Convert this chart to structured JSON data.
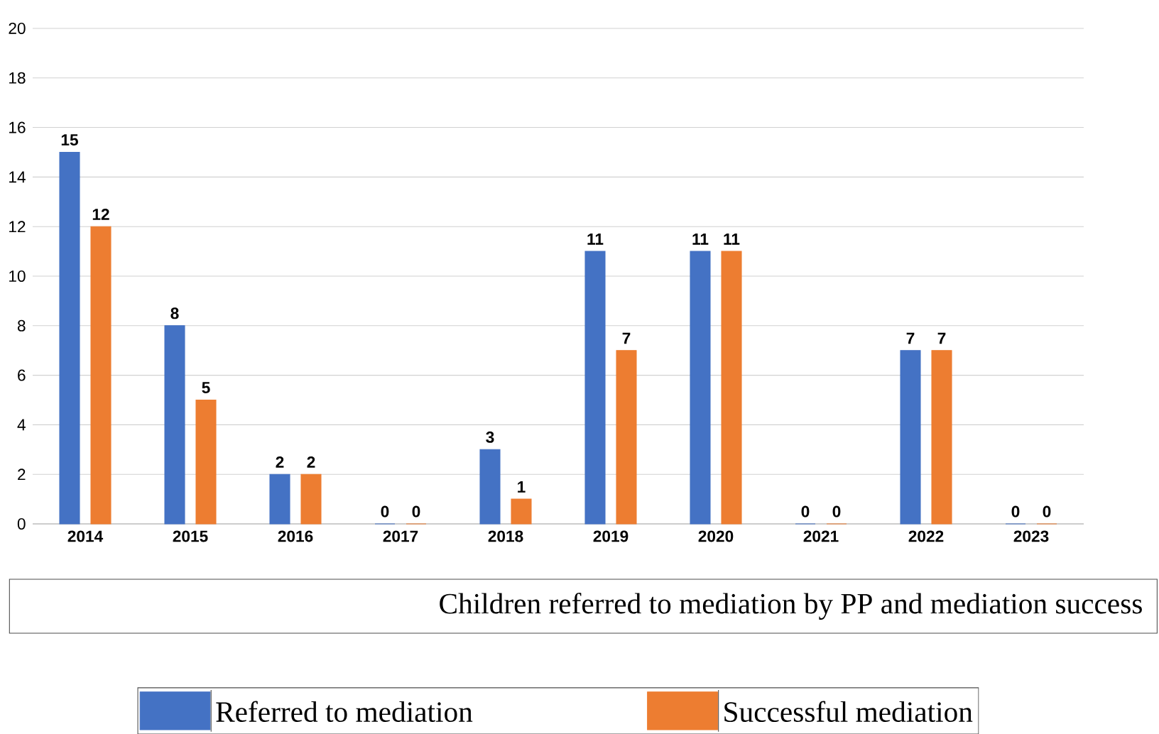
{
  "chart_data": {
    "type": "bar",
    "title": "Children referred to mediation by PP and mediation success",
    "categories": [
      "2014",
      "2015",
      "2016",
      "2017",
      "2018",
      "2019",
      "2020",
      "2021",
      "2022",
      "2023"
    ],
    "series": [
      {
        "name": "Referred to mediation",
        "color": "#4472c4",
        "values": [
          15,
          8,
          2,
          0,
          3,
          11,
          11,
          0,
          7,
          0
        ]
      },
      {
        "name": "Successful mediation",
        "color": "#ed7d31",
        "values": [
          12,
          5,
          2,
          0,
          1,
          7,
          11,
          0,
          7,
          0
        ]
      }
    ],
    "ylim": [
      0,
      20
    ],
    "yticks": [
      0,
      2,
      4,
      6,
      8,
      10,
      12,
      14,
      16,
      18,
      20
    ],
    "grid": "y",
    "data_labels": true,
    "legend": "bottom"
  }
}
